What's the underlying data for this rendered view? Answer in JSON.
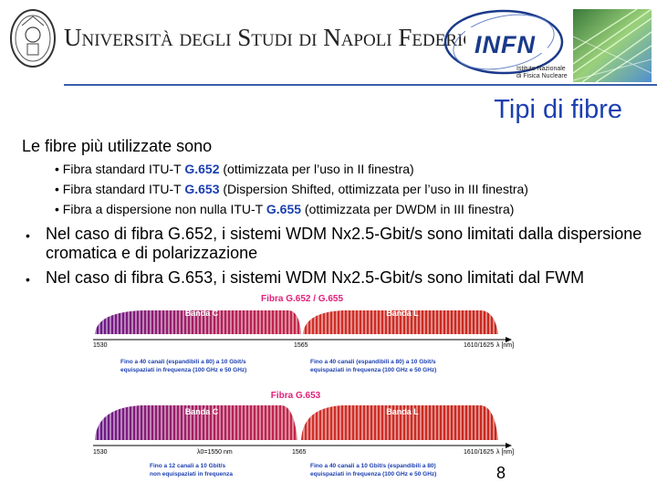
{
  "header": {
    "university_name": "Università degli Studi di Napoli Federico II",
    "infn_logo_text": "INFN",
    "infn_subtitle_line1": "Istituto Nazionale",
    "infn_subtitle_line2": "di Fisica Nucleare"
  },
  "title": "Tipi di fibre",
  "intro": "Le fibre più utilizzate sono",
  "fiber_types": [
    {
      "before": "Fibra standard ITU-T ",
      "code": "G.652",
      "after": " (ottimizzata per l’uso in II finestra)"
    },
    {
      "before": "Fibra standard ITU-T ",
      "code": "G.653",
      "after": " (Dispersion Shifted, ottimizzata per l’uso in III finestra)"
    },
    {
      "before": "Fibra a dispersione non nulla ITU-T ",
      "code": "G.655",
      "after": " (ottimizzata per   DWDM in III finestra)"
    }
  ],
  "bullets": [
    "Nel caso di fibra G.652, i sistemi WDM Nx2.5-Gbit/s sono limitati dalla dispersione cromatica e di polarizzazione",
    "Nel caso di fibra G.653, i sistemi WDM Nx2.5-Gbit/s sono limitati dal FWM"
  ],
  "figure": {
    "top": {
      "title": "Fibra G.652 / G.655",
      "band_c": "Banda C",
      "band_l": "Banda L",
      "tick_left": "1530",
      "tick_mid": "1565",
      "tick_right": "1610/1625",
      "axis_unit": "λ [nm]",
      "note_left_1": "Fino a 40 canali (espandibili a 80) a 10 Gbit/s",
      "note_left_2": "equispaziati in frequenza (100 GHz e 50 GHz)",
      "note_right_1": "Fino a 40 canali (espandibili a 80) a 10 Gbit/s",
      "note_right_2": "equispaziati in frequenza (100 GHz e 50 GHz)"
    },
    "bottom": {
      "title": "Fibra G.653",
      "band_c": "Banda C",
      "band_l": "Banda L",
      "tick_left": "1530",
      "tick_mid": "1565",
      "tick_right": "1610/1625",
      "lambda0": "λ0=1550 nm",
      "axis_unit": "λ [nm]",
      "note_left_1": "Fino a 12 canali a 10 Gbit/s",
      "note_left_2": "non equispaziati in frequenza",
      "note_right_1": "Fino a 40 canali a 10 Gbit/s (espandibili a 80)",
      "note_right_2": "equispaziati in frequenza (100 GHz e 50 GHz)"
    }
  },
  "page_number": "8",
  "colors": {
    "title_blue": "#1b3fb0",
    "band_c": "#a0204a",
    "band_l": "#c7341e",
    "figure_title_red": "#e0207a"
  }
}
